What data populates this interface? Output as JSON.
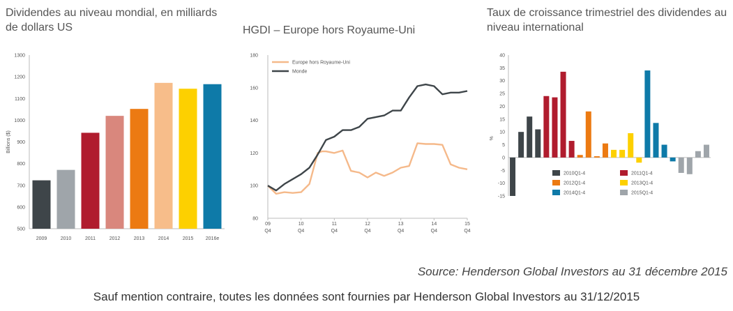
{
  "chart_data": [
    {
      "type": "bar",
      "title": "Dividendes au niveau mondial, en milliards de dollars US",
      "ylabel": "Billions ($)",
      "ylim": [
        500,
        1300
      ],
      "yticks": [
        500,
        600,
        700,
        800,
        900,
        1000,
        1100,
        1200,
        1300
      ],
      "categories": [
        "2009",
        "2010",
        "2011",
        "2012",
        "2013",
        "2014",
        "2015",
        "2016e"
      ],
      "values": [
        723,
        771,
        942,
        1020,
        1052,
        1172,
        1145,
        1166
      ],
      "colors": [
        "#3e4549",
        "#9fa5aa",
        "#b01c2e",
        "#d9877d",
        "#ec7a12",
        "#f7bd8a",
        "#fdd000",
        "#0e7aa8"
      ]
    },
    {
      "type": "line",
      "title": "HGDI – Europe hors Royaume-Uni",
      "ylim": [
        80,
        180
      ],
      "yticks": [
        80,
        100,
        120,
        140,
        160,
        180
      ],
      "xlim": [
        0,
        24
      ],
      "xtick_positions": [
        0,
        4,
        8,
        12,
        16,
        20,
        24
      ],
      "xtick_years": [
        "09",
        "10",
        "11",
        "12",
        "13",
        "14",
        "15"
      ],
      "xtick_quarter": "Q4",
      "legend_position": "top-left",
      "series": [
        {
          "name": "Europe hors Royaume-Uni",
          "color": "#f5b98a",
          "x": [
            0,
            1,
            2,
            3,
            4,
            5,
            6,
            6.5,
            7,
            8,
            9,
            10,
            11,
            12,
            13,
            14,
            15,
            16,
            17,
            18,
            19,
            20,
            21,
            22,
            23,
            24
          ],
          "values": [
            100,
            95,
            96,
            95.5,
            96,
            101,
            120,
            121,
            121,
            120,
            121.5,
            109,
            108,
            105,
            108,
            106,
            108,
            111,
            112,
            126,
            125.5,
            125.5,
            125,
            113,
            111,
            110
          ]
        },
        {
          "name": "Monde",
          "color": "#3e4549",
          "x": [
            0,
            1,
            2,
            3,
            4,
            5,
            6,
            7,
            8,
            9,
            10,
            11,
            12,
            13,
            14,
            15,
            16,
            17,
            18,
            19,
            20,
            21,
            22,
            23,
            24
          ],
          "values": [
            100,
            97,
            101,
            104,
            107,
            111,
            119,
            128,
            130,
            134,
            134,
            136,
            141,
            142,
            143,
            146,
            146,
            154,
            161,
            162,
            161,
            156,
            157,
            157,
            158
          ]
        }
      ]
    },
    {
      "type": "bar",
      "title": "Taux de croissance trimestriel des dividendes au niveau international",
      "ylabel": "%",
      "ylim": [
        -15,
        40
      ],
      "yticks": [
        -15,
        -10,
        -5,
        0,
        5,
        10,
        15,
        20,
        25,
        30,
        35,
        40
      ],
      "legend_position": "bottom-center",
      "series": [
        {
          "name": "2010Q1-4",
          "color": "#3e4549",
          "values": [
            -15,
            10,
            16,
            11
          ]
        },
        {
          "name": "2011Q1-4",
          "color": "#b01c2e",
          "values": [
            24,
            23.5,
            33.5,
            6.5
          ]
        },
        {
          "name": "2012Q1-4",
          "color": "#ec7a12",
          "values": [
            1,
            18,
            0.5,
            5.5
          ]
        },
        {
          "name": "2013Q1-4",
          "color": "#fdd000",
          "values": [
            3,
            3,
            9.5,
            -2
          ]
        },
        {
          "name": "2014Q1-4",
          "color": "#0e7aa8",
          "values": [
            34,
            13.5,
            5,
            -1.5
          ]
        },
        {
          "name": "2015Q1-4",
          "color": "#9fa5aa",
          "values": [
            -6,
            -6.5,
            2.5,
            5
          ]
        }
      ]
    }
  ],
  "text": {
    "title1": "Dividendes au niveau mondial, en milliards de dollars US",
    "title2": "HGDI – Europe hors Royaume-Uni",
    "title3": "Taux de croissance trimestriel des dividendes au niveau international",
    "source": "Source: Henderson Global Investors au 31 décembre 2015",
    "footer": "Sauf mention contraire, toutes les données sont fournies par Henderson Global Investors au 31/12/2015"
  }
}
